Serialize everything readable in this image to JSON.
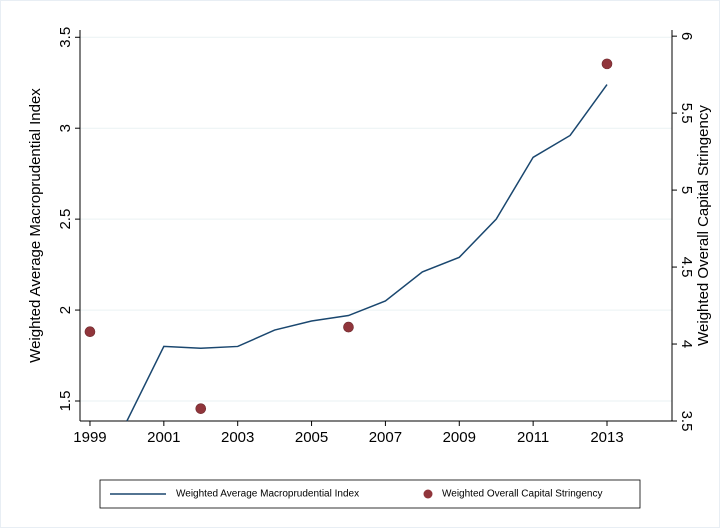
{
  "chart_data": {
    "type": "line",
    "x_label": null,
    "y_label": "Weighted Average Macroprudential Index",
    "y2_label": "Weighted Overall Capital Stringency",
    "xlim": [
      1998.73,
      2014.76
    ],
    "xticks": [
      1999,
      2001,
      2003,
      2005,
      2007,
      2009,
      2011,
      2013
    ],
    "ylim": [
      1.39,
      3.54
    ],
    "yticks": [
      1.5,
      2,
      2.5,
      3,
      3.5
    ],
    "y2lim": [
      3.5,
      6.04
    ],
    "y2ticks": [
      3.5,
      4,
      4.5,
      5,
      5.5,
      6
    ],
    "grid": true,
    "legend": "bottom",
    "series": [
      {
        "name": "Weighted Average Macroprudential Index",
        "type": "line",
        "color": "#1a476f",
        "x": [
          2000,
          2001,
          2002,
          2003,
          2004,
          2005,
          2006,
          2007,
          2008,
          2009,
          2010,
          2011,
          2012,
          2013
        ],
        "values": [
          1.39,
          1.8,
          1.79,
          1.8,
          1.89,
          1.94,
          1.97,
          2.05,
          2.21,
          2.29,
          2.5,
          2.84,
          2.96,
          3.24
        ]
      },
      {
        "name": "Weighted Overall Capital Stringency",
        "type": "scatter",
        "axis": "y2",
        "color": "#90353b",
        "x": [
          1999,
          2002,
          2006,
          2013
        ],
        "values": [
          4.08,
          3.58,
          4.11,
          5.82
        ]
      }
    ]
  }
}
